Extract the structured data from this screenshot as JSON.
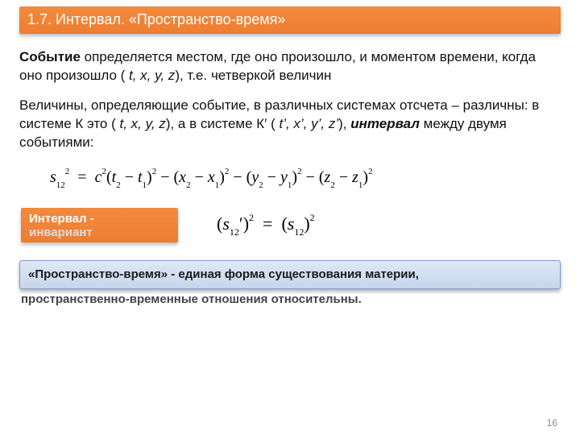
{
  "header": {
    "title": "1.7. Интервал.  «Пространство-время»"
  },
  "p1": {
    "lead": "Событие",
    "rest": " определяется местом, где оно произошло, и моментом времени, когда оно произошло ( ",
    "vars": "t, x, y, z",
    "tail": "), т.е. четверкой величин"
  },
  "p2": {
    "a": "Величины, определяющие событие, в различных системах отсчета – различны: в системе К это ( ",
    "vars1": "t, x, y, z",
    "b": "), а в системе К′ ( ",
    "vars2": "t’, x’, y’, z’",
    "c": "), ",
    "interval": "интервал",
    "d": " между двумя событиями:"
  },
  "orange": {
    "line1": "Интервал -",
    "line2": "инвариант"
  },
  "blue": {
    "text": "«Пространство-время» - единая форма существования материи,"
  },
  "after": {
    "text": "пространственно-временные отношения относительны."
  },
  "pagenum": "16"
}
